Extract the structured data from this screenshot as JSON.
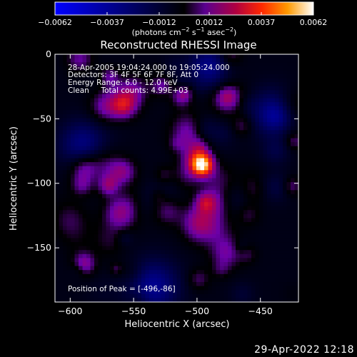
{
  "chart_data": {
    "type": "heatmap",
    "title": "Reconstructed RHESSI Image",
    "xlabel": "Heliocentric X (arcsec)",
    "ylabel": "Heliocentric Y (arcsec)",
    "xlim": [
      -612,
      -420
    ],
    "ylim": [
      -192,
      0
    ],
    "xticks": [
      -600,
      -550,
      -500,
      -450
    ],
    "xticks_labels": [
      "−600",
      "−550",
      "−500",
      "−450"
    ],
    "yticks": [
      0,
      -50,
      -100,
      -150
    ],
    "yticks_labels": [
      "0",
      "−50",
      "−100",
      "−150"
    ],
    "colorbar": {
      "range": [
        -0.0062,
        0.0062
      ],
      "ticks": [
        -0.0062,
        -0.0037,
        -0.0012,
        0.0012,
        0.0037,
        0.0062
      ],
      "tick_labels": [
        "−0.0062",
        "−0.0037",
        "−0.0012",
        "0.0012",
        "0.0037",
        "0.0062"
      ],
      "unit_label_main": "(photons cm",
      "unit_label_sup1": "−2",
      "unit_label_mid1": " s",
      "unit_label_sup2": "−1",
      "unit_label_mid2": " asec",
      "unit_label_sup3": "−2",
      "unit_label_end": ")",
      "colors": [
        "#0000ff",
        "#000000",
        "#6a00a8",
        "#c0003c",
        "#ff3000",
        "#ff9000",
        "#ffffff"
      ]
    },
    "info_lines": [
      "28-Apr-2005 19:04:24.000 to 19:05:24.000",
      "Detectors: 3F 4F 5F 6F 7F 8F, Att 0",
      "Energy Range: 6.0 - 12.0 keV",
      "Clean     Total counts: 4.99E+03"
    ],
    "peak_text": "Position of Peak = [-496,-86]",
    "peak": {
      "x": -496,
      "y": -86,
      "value": 0.0062
    }
  },
  "footer": {
    "timestamp": "29-Apr-2022 12:18"
  }
}
